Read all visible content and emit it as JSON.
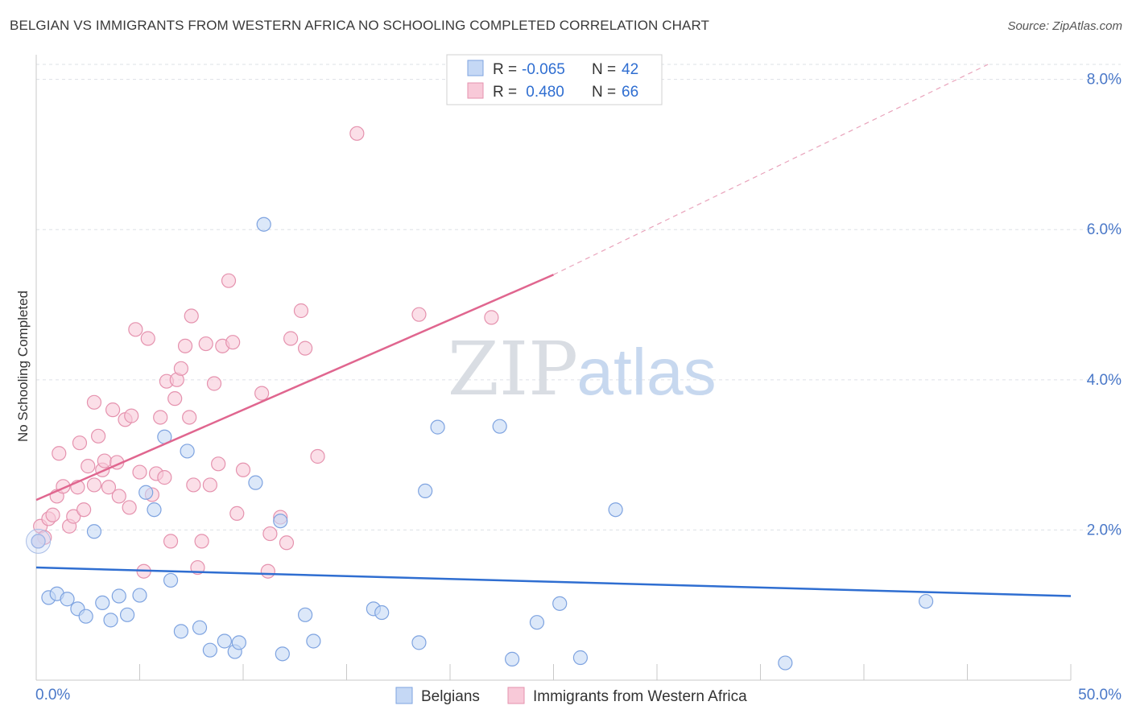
{
  "title": "BELGIAN VS IMMIGRANTS FROM WESTERN AFRICA NO SCHOOLING COMPLETED CORRELATION CHART",
  "source": "Source: ZipAtlas.com",
  "watermark": {
    "zip": "ZIP",
    "atlas": "atlas"
  },
  "colors": {
    "blue": "#2f6ed1",
    "blue_fill": "#c5d8f5",
    "pink": "#e0668f",
    "pink_fill": "#f8c9d8",
    "tick": "#4a78c8"
  },
  "chart_data": {
    "type": "scatter",
    "ylabel": "No Schooling Completed",
    "xlim": [
      0,
      50
    ],
    "ylim": [
      0,
      8.2
    ],
    "x_tick_labels": [
      "0.0%",
      "50.0%"
    ],
    "y_ticks": [
      2,
      4,
      6,
      8
    ],
    "y_tick_labels": [
      "2.0%",
      "4.0%",
      "6.0%",
      "8.0%"
    ],
    "legend": {
      "rows": [
        {
          "r_label": "R =",
          "r_value": "-0.065",
          "n_label": "N =",
          "n_value": "42"
        },
        {
          "r_label": "R =",
          "r_value": " 0.480",
          "n_label": "N =",
          "n_value": "66"
        }
      ]
    },
    "series": [
      {
        "name": "Belgians",
        "trend": {
          "x0": 0,
          "y0": 1.5,
          "x1": 50,
          "y1": 1.12,
          "dash_to": null
        },
        "points": [
          [
            0.1,
            1.85
          ],
          [
            0.6,
            1.1
          ],
          [
            1.0,
            1.15
          ],
          [
            1.5,
            1.08
          ],
          [
            2.0,
            0.95
          ],
          [
            2.4,
            0.85
          ],
          [
            2.8,
            1.98
          ],
          [
            3.2,
            1.03
          ],
          [
            3.6,
            0.8
          ],
          [
            4.0,
            1.12
          ],
          [
            4.4,
            0.87
          ],
          [
            5.0,
            1.13
          ],
          [
            5.3,
            2.5
          ],
          [
            5.7,
            2.27
          ],
          [
            6.2,
            3.24
          ],
          [
            6.5,
            1.33
          ],
          [
            7.0,
            0.65
          ],
          [
            7.3,
            3.05
          ],
          [
            7.9,
            0.7
          ],
          [
            8.4,
            0.4
          ],
          [
            9.1,
            0.52
          ],
          [
            9.6,
            0.38
          ],
          [
            9.8,
            0.5
          ],
          [
            10.6,
            2.63
          ],
          [
            11.0,
            6.07
          ],
          [
            11.9,
            0.35
          ],
          [
            11.8,
            2.12
          ],
          [
            13.0,
            0.87
          ],
          [
            13.4,
            0.52
          ],
          [
            16.3,
            0.95
          ],
          [
            16.7,
            0.9
          ],
          [
            18.5,
            0.5
          ],
          [
            18.8,
            2.52
          ],
          [
            19.4,
            3.37
          ],
          [
            22.4,
            3.38
          ],
          [
            23.0,
            0.28
          ],
          [
            24.2,
            0.77
          ],
          [
            25.3,
            1.02
          ],
          [
            26.3,
            0.3
          ],
          [
            28.0,
            2.27
          ],
          [
            36.2,
            0.23
          ],
          [
            43.0,
            1.05
          ]
        ]
      },
      {
        "name": "Immigrants from Western Africa",
        "trend": {
          "x0": 0,
          "y0": 2.4,
          "x1": 25,
          "y1": 5.4,
          "dash_to": [
            46,
            8.2
          ]
        },
        "points": [
          [
            0.2,
            2.05
          ],
          [
            0.4,
            1.9
          ],
          [
            0.6,
            2.15
          ],
          [
            0.8,
            2.2
          ],
          [
            1.0,
            2.45
          ],
          [
            1.1,
            3.02
          ],
          [
            1.3,
            2.58
          ],
          [
            1.6,
            2.05
          ],
          [
            1.8,
            2.18
          ],
          [
            2.0,
            2.57
          ],
          [
            2.1,
            3.16
          ],
          [
            2.3,
            2.27
          ],
          [
            2.5,
            2.85
          ],
          [
            2.8,
            2.6
          ],
          [
            2.8,
            3.7
          ],
          [
            3.0,
            3.25
          ],
          [
            3.2,
            2.8
          ],
          [
            3.3,
            2.92
          ],
          [
            3.5,
            2.57
          ],
          [
            3.7,
            3.6
          ],
          [
            3.9,
            2.9
          ],
          [
            4.0,
            2.45
          ],
          [
            4.3,
            3.47
          ],
          [
            4.5,
            2.3
          ],
          [
            4.6,
            3.52
          ],
          [
            4.8,
            4.67
          ],
          [
            5.0,
            2.77
          ],
          [
            5.2,
            1.45
          ],
          [
            5.4,
            4.55
          ],
          [
            5.6,
            2.47
          ],
          [
            5.8,
            2.75
          ],
          [
            6.0,
            3.5
          ],
          [
            6.2,
            2.7
          ],
          [
            6.3,
            3.98
          ],
          [
            6.5,
            1.85
          ],
          [
            6.7,
            3.75
          ],
          [
            6.8,
            4.0
          ],
          [
            7.0,
            4.15
          ],
          [
            7.2,
            4.45
          ],
          [
            7.4,
            3.5
          ],
          [
            7.5,
            4.85
          ],
          [
            7.6,
            2.6
          ],
          [
            7.8,
            1.5
          ],
          [
            8.0,
            1.85
          ],
          [
            8.2,
            4.48
          ],
          [
            8.4,
            2.6
          ],
          [
            8.6,
            3.95
          ],
          [
            8.8,
            2.88
          ],
          [
            9.0,
            4.45
          ],
          [
            9.3,
            5.32
          ],
          [
            9.5,
            4.5
          ],
          [
            9.7,
            2.22
          ],
          [
            10.0,
            2.8
          ],
          [
            10.9,
            3.82
          ],
          [
            11.2,
            1.45
          ],
          [
            11.3,
            1.95
          ],
          [
            11.8,
            2.17
          ],
          [
            12.1,
            1.83
          ],
          [
            12.3,
            4.55
          ],
          [
            12.8,
            4.92
          ],
          [
            13.0,
            4.42
          ],
          [
            13.6,
            2.98
          ],
          [
            15.5,
            7.28
          ],
          [
            18.5,
            4.87
          ],
          [
            22.0,
            4.83
          ],
          [
            0.1,
            1.85
          ]
        ]
      }
    ]
  }
}
